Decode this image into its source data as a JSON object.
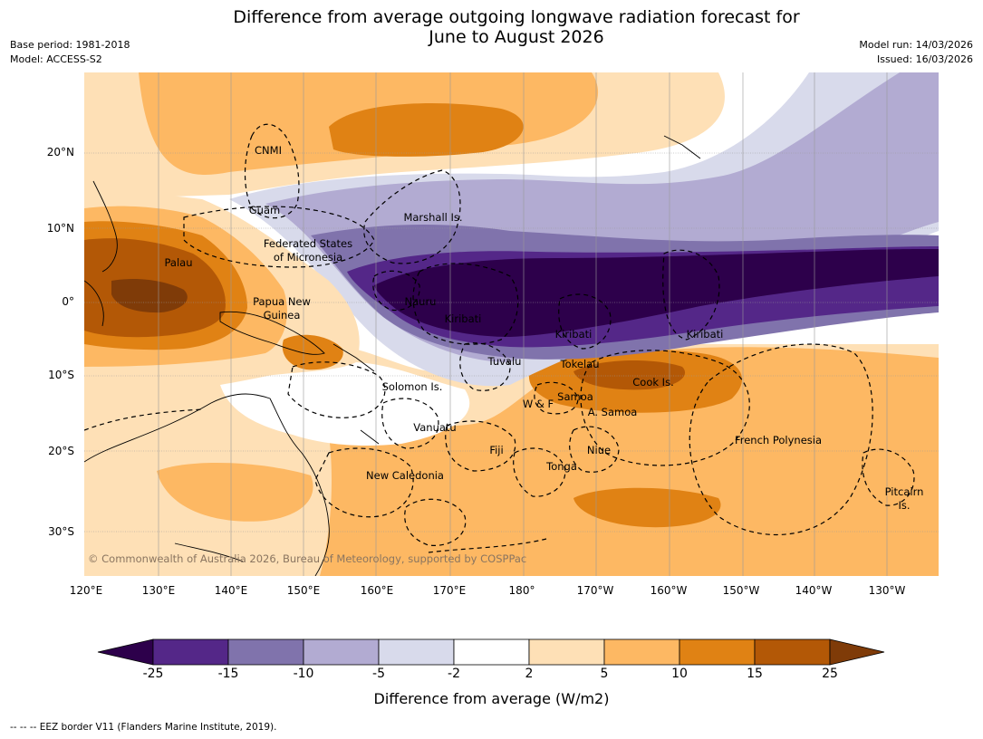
{
  "header": {
    "title_line1": "Difference from average outgoing longwave radiation forecast for",
    "title_line2": "June to August 2026",
    "base_period": "Base period: 1981-2018",
    "model": "Model: ACCESS-S2",
    "model_run": "Model run: 14/03/2026",
    "issued": "Issued: 16/03/2026"
  },
  "map": {
    "lat_ticks": [
      "20°N",
      "10°N",
      "0°",
      "10°S",
      "20°S",
      "30°S"
    ],
    "lon_ticks": [
      "120°E",
      "130°E",
      "140°E",
      "150°E",
      "160°E",
      "170°E",
      "180°",
      "170°W",
      "160°W",
      "150°W",
      "140°W",
      "130°W"
    ],
    "regions": [
      {
        "id": "cnmi",
        "label": "CNMI"
      },
      {
        "id": "guam",
        "label": "Guam"
      },
      {
        "id": "marshall",
        "label": "Marshall Is."
      },
      {
        "id": "fsm1",
        "label": "Federated States"
      },
      {
        "id": "fsm2",
        "label": "of Micronesia"
      },
      {
        "id": "palau",
        "label": "Palau"
      },
      {
        "id": "png1",
        "label": "Papua New"
      },
      {
        "id": "png2",
        "label": "Guinea"
      },
      {
        "id": "nauru",
        "label": "Nauru"
      },
      {
        "id": "kiribati-w",
        "label": "Kiribati"
      },
      {
        "id": "kiribati-c",
        "label": "Kiribati"
      },
      {
        "id": "kiribati-e",
        "label": "Kiribati"
      },
      {
        "id": "tuvalu",
        "label": "Tuvalu"
      },
      {
        "id": "tokelau",
        "label": "Tokelau"
      },
      {
        "id": "cook",
        "label": "Cook Is."
      },
      {
        "id": "solomon",
        "label": "Solomon Is."
      },
      {
        "id": "wf",
        "label": "W & F"
      },
      {
        "id": "samoa",
        "label": "Samoa"
      },
      {
        "id": "asamoa",
        "label": "A. Samoa"
      },
      {
        "id": "vanuatu",
        "label": "Vanuatu"
      },
      {
        "id": "fiji",
        "label": "Fiji"
      },
      {
        "id": "niue",
        "label": "Niue"
      },
      {
        "id": "tonga",
        "label": "Tonga"
      },
      {
        "id": "frpoly",
        "label": "French Polynesia"
      },
      {
        "id": "newcal",
        "label": "New Caledonia"
      },
      {
        "id": "pitcairn1",
        "label": "Pitcairn"
      },
      {
        "id": "pitcairn2",
        "label": "Is."
      }
    ],
    "copyright": "© Commonwealth of Australia 2026, Bureau of Meteorology, supported by COSPPac"
  },
  "colorbar": {
    "ticks": [
      "-25",
      "-15",
      "-10",
      "-5",
      "-2",
      "2",
      "5",
      "10",
      "15",
      "25"
    ],
    "colors": [
      "#2d004b",
      "#542788",
      "#8073ac",
      "#b2abd2",
      "#d8daeb",
      "#ffffff",
      "#fee0b6",
      "#fdb863",
      "#e08214",
      "#b35806",
      "#7f3b08"
    ],
    "title": "Difference from average (W/m2)"
  },
  "footnote": "-- -- -- EEZ border V11 (Flanders Marine Institute, 2019)."
}
